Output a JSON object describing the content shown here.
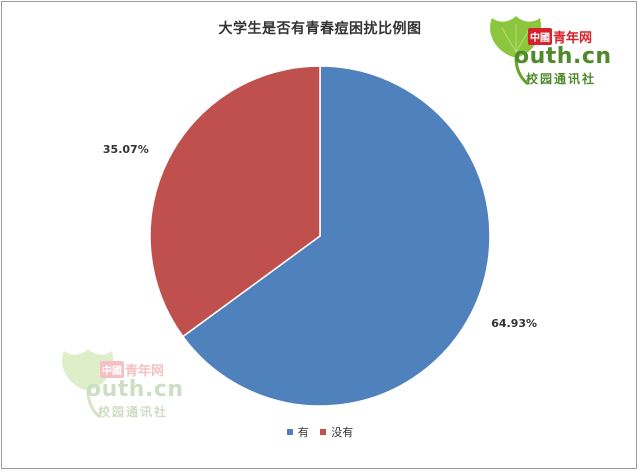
{
  "chart_data": {
    "type": "pie",
    "title": "大学生是否有青春痘困扰比例图",
    "categories": [
      "有",
      "没有"
    ],
    "values": [
      64.93,
      35.07
    ],
    "labels": [
      "64.93%",
      "35.07%"
    ],
    "colors": [
      "#4f81bd",
      "#c0504d"
    ],
    "start_angle_deg": 0,
    "direction": "clockwise",
    "legend_position": "bottom",
    "legend": [
      {
        "label": "有",
        "color": "#4f81bd"
      },
      {
        "label": "没有",
        "color": "#c0504d"
      }
    ]
  },
  "logo": {
    "badge": "中國",
    "name": "青年网",
    "domain": "outh.cn",
    "subtitle": "校园通讯社",
    "leaf_color": "#8cc63f",
    "text_color": "#4d8a2a",
    "badge_color": "#d8212a"
  }
}
